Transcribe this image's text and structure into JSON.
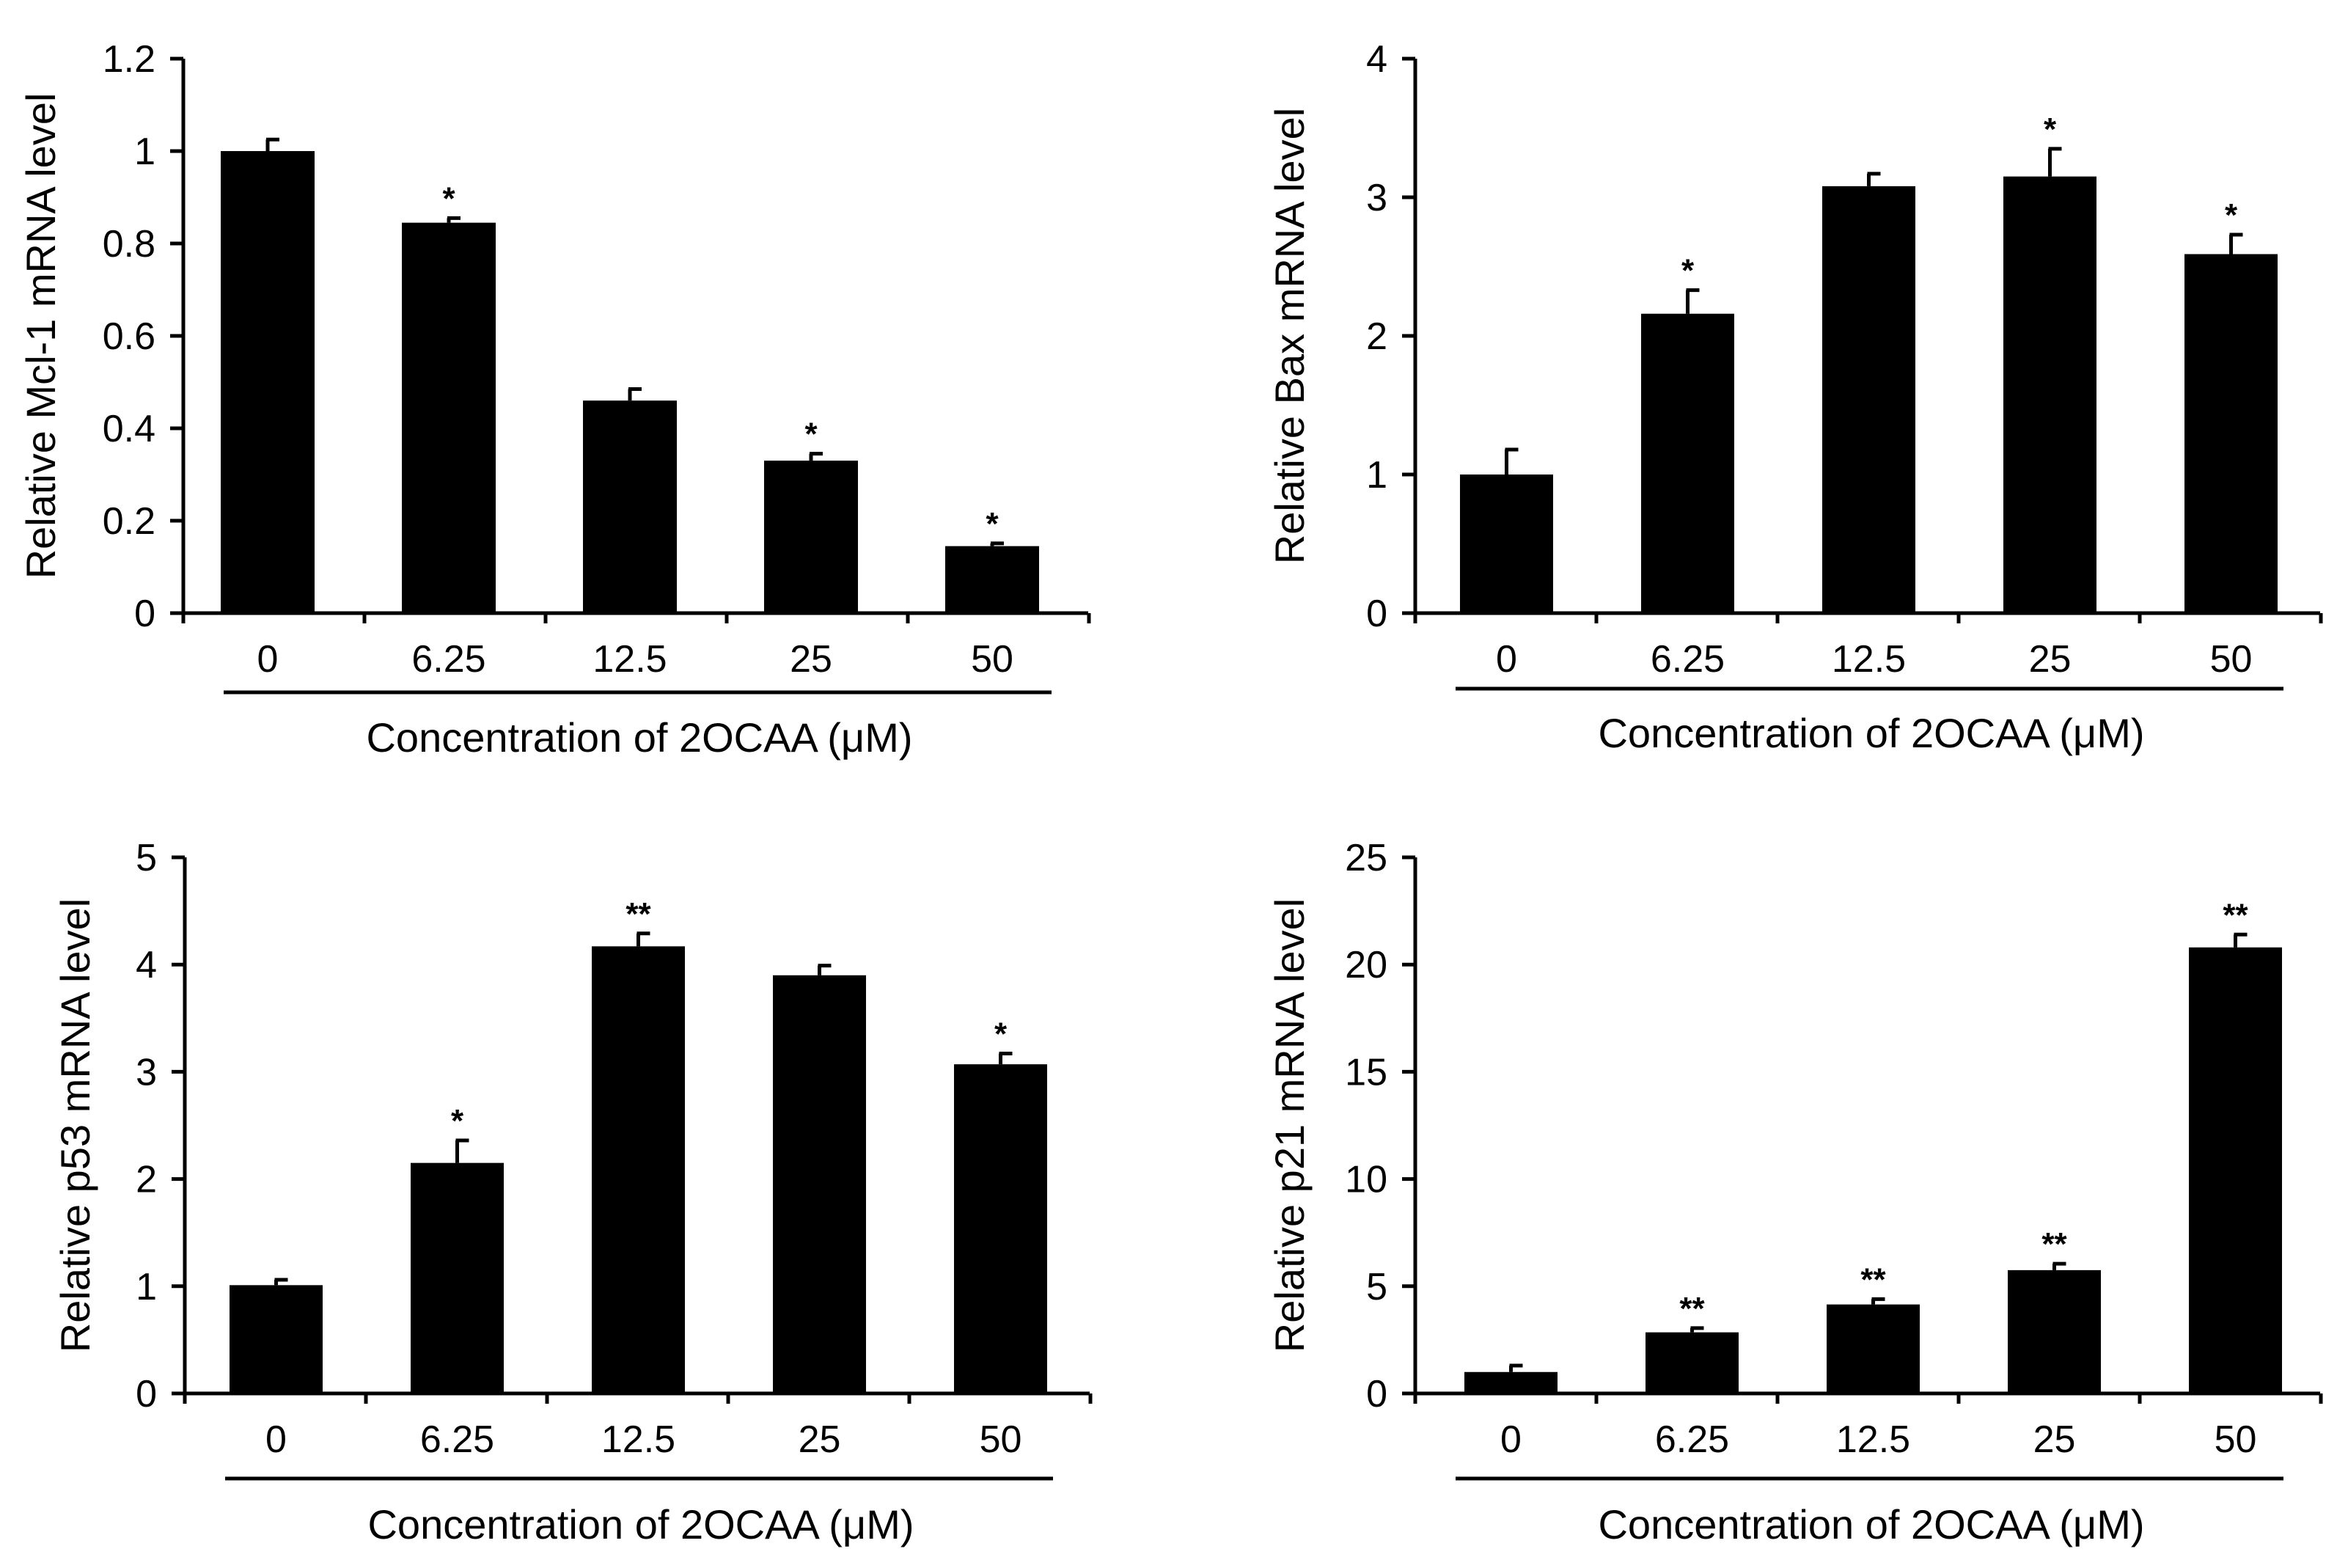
{
  "chart_data": [
    {
      "type": "bar",
      "ylabel": "Relative Mcl-1 mRNA level",
      "xlabel": "Concentration of 2OCAA (μM)",
      "categories": [
        "0",
        "6.25",
        "12.5",
        "25",
        "50"
      ],
      "values": [
        1.0,
        0.845,
        0.46,
        0.33,
        0.145
      ],
      "errors": [
        0.025,
        0.01,
        0.025,
        0.015,
        0.006
      ],
      "significance": [
        "",
        "*",
        "",
        "*",
        "*"
      ],
      "ylim": [
        0,
        1.2
      ],
      "yticks": [
        "0",
        "0.2",
        "0.4",
        "0.6",
        "0.8",
        "1",
        "1.2"
      ],
      "color": "#000000"
    },
    {
      "type": "bar",
      "ylabel": "Relative Bax mRNA level",
      "xlabel": "Concentration of 2OCAA (μM)",
      "categories": [
        "0",
        "6.25",
        "12.5",
        "25",
        "50"
      ],
      "values": [
        1.0,
        2.16,
        3.08,
        3.15,
        2.59
      ],
      "errors": [
        0.18,
        0.17,
        0.09,
        0.2,
        0.14
      ],
      "significance": [
        "",
        "*",
        "",
        "*",
        "*"
      ],
      "ylim": [
        0,
        4
      ],
      "yticks": [
        "0",
        "1",
        "2",
        "3",
        "4"
      ],
      "color": "#000000"
    },
    {
      "type": "bar",
      "ylabel": "Relative p53 mRNA level",
      "xlabel": "Concentration of 2OCAA (μM)",
      "categories": [
        "0",
        "6.25",
        "12.5",
        "25",
        "50"
      ],
      "values": [
        1.01,
        2.15,
        4.17,
        3.9,
        3.07
      ],
      "errors": [
        0.05,
        0.21,
        0.12,
        0.09,
        0.1
      ],
      "significance": [
        "",
        "*",
        "**",
        "",
        "*"
      ],
      "ylim": [
        0,
        5
      ],
      "yticks": [
        "0",
        "1",
        "2",
        "3",
        "4",
        "5"
      ],
      "color": "#000000"
    },
    {
      "type": "bar",
      "ylabel": "Relative p21 mRNA level",
      "xlabel": "Concentration of 2OCAA (μM)",
      "categories": [
        "0",
        "6.25",
        "12.5",
        "25",
        "50"
      ],
      "values": [
        1.0,
        2.85,
        4.15,
        5.75,
        20.8
      ],
      "errors": [
        0.3,
        0.2,
        0.25,
        0.3,
        0.6
      ],
      "significance": [
        "",
        "**",
        "**",
        "**",
        "**"
      ],
      "ylim": [
        0,
        25
      ],
      "yticks": [
        "0",
        "5",
        "10",
        "15",
        "20",
        "25"
      ],
      "color": "#000000"
    }
  ]
}
